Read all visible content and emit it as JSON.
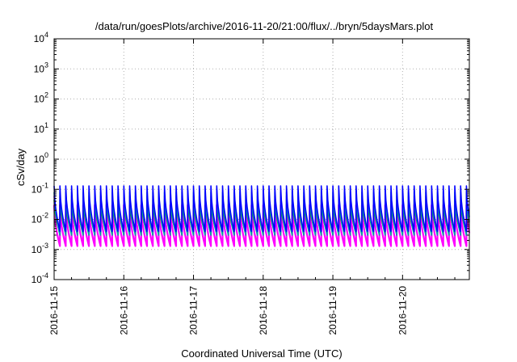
{
  "chart_data": {
    "type": "line",
    "title": "/data/run/goesPlots/archive/2016-11-20/21:00/flux/../bryn/5daysMars.plot",
    "xlabel": "Coordinated Universal Time (UTC)",
    "ylabel": "cSv/day",
    "yscale": "log",
    "ylim": [
      0.0001,
      10000
    ],
    "y_ticks": [
      {
        "base": "10",
        "exp": "-4",
        "value": 0.0001
      },
      {
        "base": "10",
        "exp": "-3",
        "value": 0.001
      },
      {
        "base": "10",
        "exp": "-2",
        "value": 0.01
      },
      {
        "base": "10",
        "exp": "-1",
        "value": 0.1
      },
      {
        "base": "10",
        "exp": "0",
        "value": 1
      },
      {
        "base": "10",
        "exp": "1",
        "value": 10
      },
      {
        "base": "10",
        "exp": "2",
        "value": 100
      },
      {
        "base": "10",
        "exp": "3",
        "value": 1000
      },
      {
        "base": "10",
        "exp": "4",
        "value": 10000
      }
    ],
    "xlim": [
      "2016-11-15T00:00",
      "2016-11-20T23:00"
    ],
    "x_tick_labels": [
      "2016-11-15",
      "2016-11-16",
      "2016-11-17",
      "2016-11-18",
      "2016-11-19",
      "2016-11-20"
    ],
    "grid": true,
    "pattern": {
      "cycles_per_day": 12,
      "days": 6
    },
    "series": [
      {
        "color": "#0000ff",
        "peak": 0.13,
        "trough": 0.004
      },
      {
        "color": "#00a0a0",
        "peak": 0.08,
        "trough": 0.003
      },
      {
        "color": "#8800cc",
        "peak": 0.06,
        "trough": 0.004
      },
      {
        "color": "#00cc00",
        "peak": 0.045,
        "trough": 0.0035
      },
      {
        "color": "#ff00ff",
        "peak": 0.03,
        "trough": 0.0013
      }
    ]
  }
}
